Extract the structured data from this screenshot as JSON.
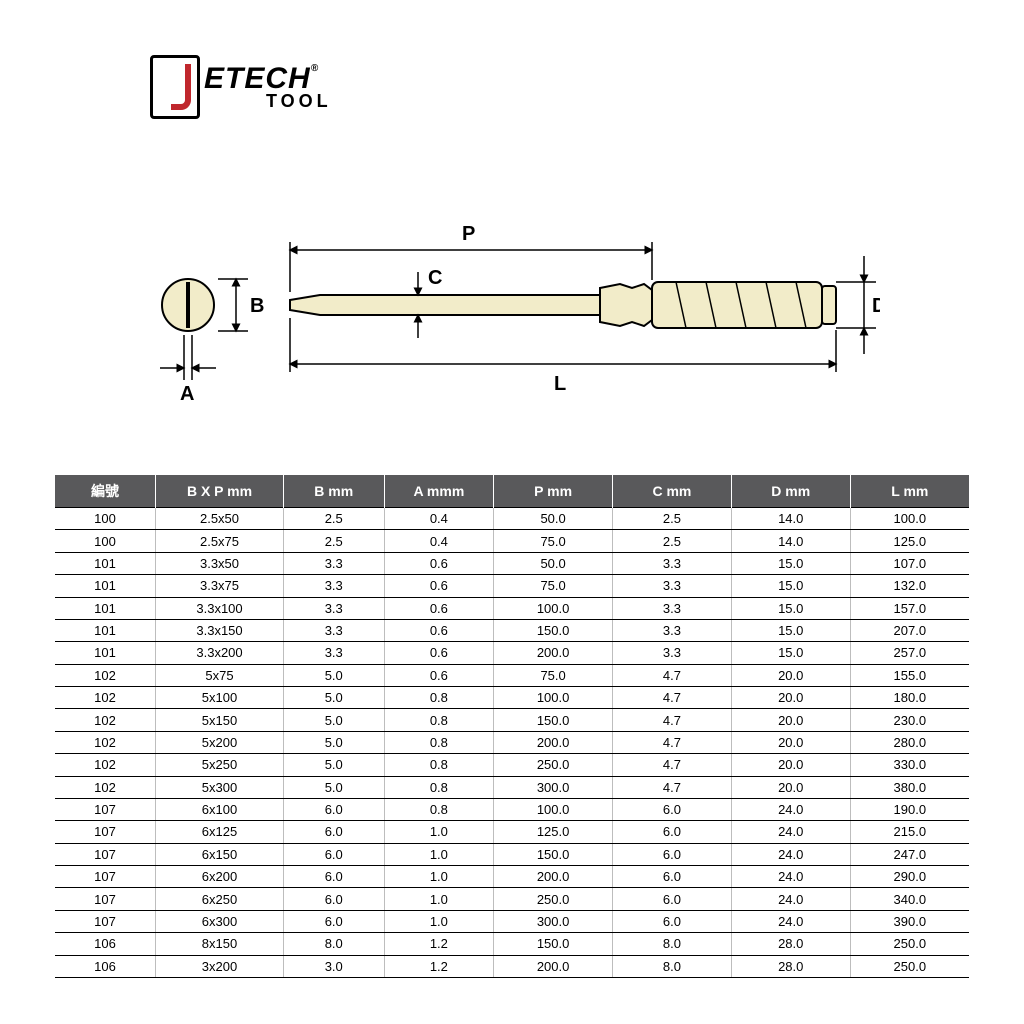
{
  "logo": {
    "brand": "ETECH",
    "sub": "TOOL",
    "reg": "®"
  },
  "diagram": {
    "labels": {
      "P": "P",
      "C": "C",
      "B": "B",
      "A": "A",
      "D": "D",
      "L": "L"
    },
    "stroke": "#000000",
    "fill": "#f2ecc9",
    "bg": "#ffffff",
    "stroke_width": 2,
    "label_fontsize": 20
  },
  "table": {
    "header_bg": "#59595b",
    "header_fg": "#ffffff",
    "border_color": "#000000",
    "cell_border": "#bdbdbd",
    "columns": [
      "編號",
      "B X P mm",
      "B mm",
      "A mmm",
      "P mm",
      "C mm",
      "D mm",
      "L mm"
    ],
    "col_widths": [
      "11%",
      "14%",
      "11%",
      "12%",
      "13%",
      "13%",
      "13%",
      "13%"
    ],
    "rows": [
      [
        "100",
        "2.5x50",
        "2.5",
        "0.4",
        "50.0",
        "2.5",
        "14.0",
        "100.0"
      ],
      [
        "100",
        "2.5x75",
        "2.5",
        "0.4",
        "75.0",
        "2.5",
        "14.0",
        "125.0"
      ],
      [
        "101",
        "3.3x50",
        "3.3",
        "0.6",
        "50.0",
        "3.3",
        "15.0",
        "107.0"
      ],
      [
        "101",
        "3.3x75",
        "3.3",
        "0.6",
        "75.0",
        "3.3",
        "15.0",
        "132.0"
      ],
      [
        "101",
        "3.3x100",
        "3.3",
        "0.6",
        "100.0",
        "3.3",
        "15.0",
        "157.0"
      ],
      [
        "101",
        "3.3x150",
        "3.3",
        "0.6",
        "150.0",
        "3.3",
        "15.0",
        "207.0"
      ],
      [
        "101",
        "3.3x200",
        "3.3",
        "0.6",
        "200.0",
        "3.3",
        "15.0",
        "257.0"
      ],
      [
        "102",
        "5x75",
        "5.0",
        "0.6",
        "75.0",
        "4.7",
        "20.0",
        "155.0"
      ],
      [
        "102",
        "5x100",
        "5.0",
        "0.8",
        "100.0",
        "4.7",
        "20.0",
        "180.0"
      ],
      [
        "102",
        "5x150",
        "5.0",
        "0.8",
        "150.0",
        "4.7",
        "20.0",
        "230.0"
      ],
      [
        "102",
        "5x200",
        "5.0",
        "0.8",
        "200.0",
        "4.7",
        "20.0",
        "280.0"
      ],
      [
        "102",
        "5x250",
        "5.0",
        "0.8",
        "250.0",
        "4.7",
        "20.0",
        "330.0"
      ],
      [
        "102",
        "5x300",
        "5.0",
        "0.8",
        "300.0",
        "4.7",
        "20.0",
        "380.0"
      ],
      [
        "107",
        "6x100",
        "6.0",
        "0.8",
        "100.0",
        "6.0",
        "24.0",
        "190.0"
      ],
      [
        "107",
        "6x125",
        "6.0",
        "1.0",
        "125.0",
        "6.0",
        "24.0",
        "215.0"
      ],
      [
        "107",
        "6x150",
        "6.0",
        "1.0",
        "150.0",
        "6.0",
        "24.0",
        "247.0"
      ],
      [
        "107",
        "6x200",
        "6.0",
        "1.0",
        "200.0",
        "6.0",
        "24.0",
        "290.0"
      ],
      [
        "107",
        "6x250",
        "6.0",
        "1.0",
        "250.0",
        "6.0",
        "24.0",
        "340.0"
      ],
      [
        "107",
        "6x300",
        "6.0",
        "1.0",
        "300.0",
        "6.0",
        "24.0",
        "390.0"
      ],
      [
        "106",
        "8x150",
        "8.0",
        "1.2",
        "150.0",
        "8.0",
        "28.0",
        "250.0"
      ],
      [
        "106",
        "3x200",
        "3.0",
        "1.2",
        "200.0",
        "8.0",
        "28.0",
        "250.0"
      ]
    ]
  }
}
